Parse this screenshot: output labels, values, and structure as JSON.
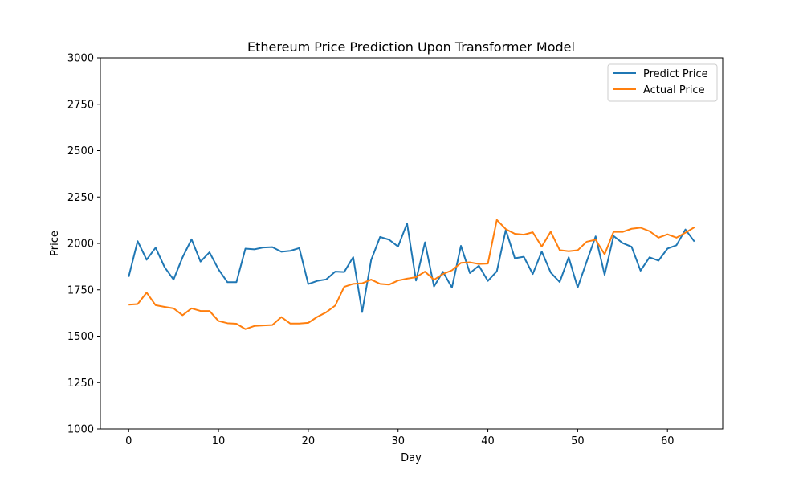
{
  "chart_data": {
    "type": "line",
    "title": "Ethereum Price Prediction Upon Transformer Model",
    "xlabel": "Day",
    "ylabel": "Price",
    "xlim": [
      -3.15,
      66.15
    ],
    "ylim": [
      1000,
      3000
    ],
    "xticks": [
      0,
      10,
      20,
      30,
      40,
      50,
      60
    ],
    "yticks": [
      1000,
      1250,
      1500,
      1750,
      2000,
      2250,
      2500,
      2750,
      3000
    ],
    "grid": false,
    "legend_position": "top-right",
    "x": [
      0,
      1,
      2,
      3,
      4,
      5,
      6,
      7,
      8,
      9,
      10,
      11,
      12,
      13,
      14,
      15,
      16,
      17,
      18,
      19,
      20,
      21,
      22,
      23,
      24,
      25,
      26,
      27,
      28,
      29,
      30,
      31,
      32,
      33,
      34,
      35,
      36,
      37,
      38,
      39,
      40,
      41,
      42,
      43,
      44,
      45,
      46,
      47,
      48,
      49,
      50,
      51,
      52,
      53,
      54,
      55,
      56,
      57,
      58,
      59,
      60,
      61,
      62,
      63
    ],
    "series": [
      {
        "name": "Predict Price",
        "color": "#1f77b4",
        "values": [
          1820,
          2012,
          1912,
          1977,
          1872,
          1805,
          1925,
          2022,
          1902,
          1952,
          1860,
          1791,
          1791,
          1972,
          1968,
          1978,
          1980,
          1955,
          1960,
          1975,
          1781,
          1798,
          1806,
          1848,
          1846,
          1926,
          1630,
          1910,
          2035,
          2020,
          1983,
          2108,
          1800,
          2006,
          1768,
          1847,
          1762,
          1987,
          1840,
          1880,
          1798,
          1850,
          2073,
          1920,
          1928,
          1835,
          1956,
          1843,
          1792,
          1925,
          1762,
          1902,
          2038,
          1831,
          2040,
          2002,
          1982,
          1853,
          1925,
          1907,
          1972,
          1990,
          2075,
          2010
        ]
      },
      {
        "name": "Actual Price",
        "color": "#ff7f0e",
        "values": [
          1670,
          1673,
          1735,
          1667,
          1658,
          1650,
          1613,
          1650,
          1636,
          1636,
          1582,
          1570,
          1567,
          1538,
          1555,
          1558,
          1560,
          1603,
          1568,
          1568,
          1572,
          1604,
          1629,
          1665,
          1766,
          1782,
          1785,
          1805,
          1782,
          1778,
          1800,
          1810,
          1818,
          1848,
          1804,
          1835,
          1855,
          1895,
          1898,
          1889,
          1891,
          2127,
          2077,
          2052,
          2047,
          2060,
          1983,
          2063,
          1964,
          1958,
          1963,
          2009,
          2020,
          1941,
          2063,
          2062,
          2079,
          2085,
          2066,
          2031,
          2049,
          2031,
          2058,
          2087
        ]
      }
    ]
  }
}
